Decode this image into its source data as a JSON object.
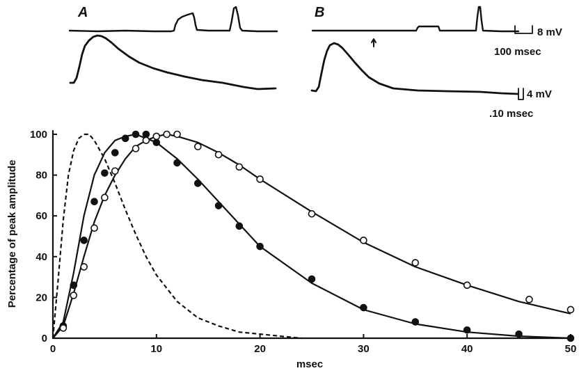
{
  "panels": {
    "a_label": "A",
    "b_label": "B",
    "scale_top_voltage": "8 mV",
    "scale_top_time": "100 msec",
    "scale_bottom_voltage": "4 mV",
    "scale_bottom_time": ".10 msec"
  },
  "chart_data": {
    "type": "scatter",
    "title": "",
    "xlabel": "msec",
    "ylabel": "Percentage of peak amplitude",
    "xlim": [
      0,
      50
    ],
    "ylim": [
      0,
      100
    ],
    "xticks": [
      0,
      10,
      20,
      30,
      40,
      50
    ],
    "yticks": [
      0,
      20,
      40,
      60,
      80,
      100
    ],
    "grid": false,
    "series": [
      {
        "marker": "filled-circle",
        "points": [
          [
            1,
            6
          ],
          [
            2,
            26
          ],
          [
            3,
            48
          ],
          [
            4,
            67
          ],
          [
            5,
            81
          ],
          [
            6,
            91
          ],
          [
            7,
            98
          ],
          [
            8,
            100
          ],
          [
            9,
            100
          ],
          [
            10,
            96
          ],
          [
            12,
            86
          ],
          [
            14,
            76
          ],
          [
            16,
            65
          ],
          [
            18,
            55
          ],
          [
            20,
            45
          ],
          [
            25,
            29
          ],
          [
            30,
            15
          ],
          [
            35,
            8
          ],
          [
            40,
            4
          ],
          [
            45,
            2
          ],
          [
            50,
            0
          ]
        ]
      },
      {
        "marker": "open-circle",
        "points": [
          [
            1,
            5
          ],
          [
            2,
            21
          ],
          [
            3,
            35
          ],
          [
            4,
            54
          ],
          [
            5,
            69
          ],
          [
            6,
            82
          ],
          [
            8,
            93
          ],
          [
            9,
            97
          ],
          [
            10,
            99
          ],
          [
            11,
            100
          ],
          [
            12,
            100
          ],
          [
            14,
            94
          ],
          [
            16,
            90
          ],
          [
            18,
            84
          ],
          [
            20,
            78
          ],
          [
            25,
            61
          ],
          [
            30,
            48
          ],
          [
            35,
            37
          ],
          [
            40,
            26
          ],
          [
            46,
            19
          ],
          [
            50,
            14
          ]
        ]
      },
      {
        "line": "solid-fit",
        "points": [
          [
            0,
            0
          ],
          [
            1,
            8
          ],
          [
            2,
            32
          ],
          [
            3,
            60
          ],
          [
            4,
            80
          ],
          [
            5,
            91
          ],
          [
            6,
            97
          ],
          [
            7,
            99
          ],
          [
            8,
            100
          ],
          [
            10,
            96
          ],
          [
            12,
            88
          ],
          [
            14,
            78
          ],
          [
            16,
            67
          ],
          [
            18,
            56
          ],
          [
            20,
            45
          ],
          [
            25,
            27
          ],
          [
            30,
            14
          ],
          [
            35,
            7
          ],
          [
            40,
            3
          ],
          [
            45,
            1
          ],
          [
            50,
            0
          ]
        ]
      },
      {
        "line": "solid-fit",
        "points": [
          [
            0,
            0
          ],
          [
            1,
            6
          ],
          [
            2,
            22
          ],
          [
            3,
            40
          ],
          [
            4,
            57
          ],
          [
            5,
            70
          ],
          [
            6,
            80
          ],
          [
            7,
            88
          ],
          [
            8,
            94
          ],
          [
            9,
            97
          ],
          [
            10,
            99
          ],
          [
            11,
            100
          ],
          [
            12,
            99
          ],
          [
            14,
            96
          ],
          [
            16,
            91
          ],
          [
            18,
            85
          ],
          [
            20,
            78
          ],
          [
            25,
            62
          ],
          [
            30,
            47
          ],
          [
            35,
            35
          ],
          [
            40,
            26
          ],
          [
            45,
            18
          ],
          [
            50,
            12
          ]
        ]
      },
      {
        "line": "dashed",
        "points": [
          [
            0,
            0
          ],
          [
            0.5,
            28
          ],
          [
            1,
            58
          ],
          [
            1.5,
            80
          ],
          [
            2,
            92
          ],
          [
            2.5,
            98
          ],
          [
            3,
            100
          ],
          [
            3.5,
            100
          ],
          [
            4,
            97
          ],
          [
            5,
            88
          ],
          [
            6,
            76
          ],
          [
            7,
            63
          ],
          [
            8,
            51
          ],
          [
            9,
            40
          ],
          [
            10,
            31
          ],
          [
            12,
            18
          ],
          [
            14,
            10
          ],
          [
            16,
            6
          ],
          [
            18,
            3
          ],
          [
            20,
            2
          ],
          [
            22,
            1
          ],
          [
            24,
            0
          ]
        ]
      }
    ]
  }
}
